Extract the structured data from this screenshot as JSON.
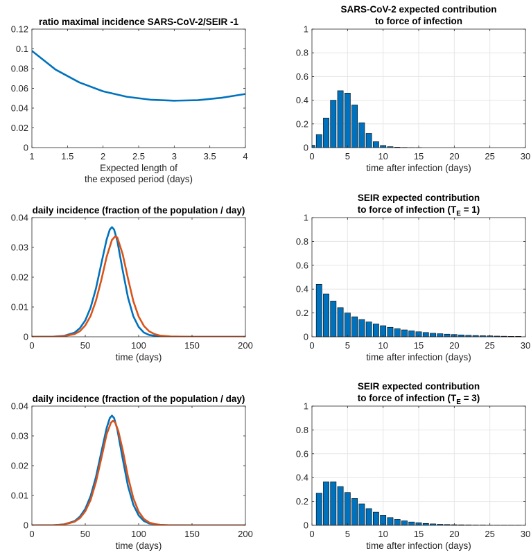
{
  "chart_data": [
    {
      "type": "line",
      "title": "ratio maximal incidence SARS-CoV-2/SEIR -1",
      "xlabel": [
        "Expected length of",
        "the exposed period (days)"
      ],
      "ylabel": "",
      "xlim": [
        1,
        4
      ],
      "ylim": [
        0,
        0.12
      ],
      "xticks": [
        1,
        1.5,
        2,
        2.5,
        3,
        3.5,
        4
      ],
      "yticks": [
        0,
        0.02,
        0.04,
        0.06,
        0.08,
        0.1,
        0.12
      ],
      "xtick_labels": [
        "1",
        "1.5",
        "2",
        "2.5",
        "3",
        "3.5",
        "4"
      ],
      "ytick_labels": [
        "0",
        "0.02",
        "0.04",
        "0.06",
        "0.08",
        "0.1",
        "0.12"
      ],
      "grid": false,
      "series": [
        {
          "color": "#0072BD",
          "x": [
            1,
            1.333,
            1.667,
            2,
            2.333,
            2.667,
            3,
            3.333,
            3.667,
            4
          ],
          "y": [
            0.098,
            0.079,
            0.066,
            0.057,
            0.0515,
            0.0485,
            0.0475,
            0.048,
            0.0505,
            0.0543
          ]
        }
      ]
    },
    {
      "type": "bar",
      "title": [
        "SARS-CoV-2 expected contribution",
        "to force of infection"
      ],
      "xlabel": "time after infection (days)",
      "ylabel": "",
      "xlim": [
        0,
        30
      ],
      "ylim": [
        0,
        1
      ],
      "xticks": [
        0,
        5,
        10,
        15,
        20,
        25,
        30
      ],
      "yticks": [
        0,
        0.2,
        0.4,
        0.6,
        0.8,
        1
      ],
      "xtick_labels": [
        "0",
        "5",
        "10",
        "15",
        "20",
        "25",
        "30"
      ],
      "ytick_labels": [
        "0",
        "0.2",
        "0.4",
        "0.6",
        "0.8",
        "1"
      ],
      "grid": true,
      "bar_color": "#0072BD",
      "x": [
        0,
        1,
        2,
        3,
        4,
        5,
        6,
        7,
        8,
        9,
        10,
        11,
        12,
        13,
        14,
        15
      ],
      "values": [
        0.02,
        0.11,
        0.25,
        0.4,
        0.48,
        0.46,
        0.36,
        0.21,
        0.12,
        0.05,
        0.018,
        0.008,
        0.004,
        0.002,
        0.001,
        0.001
      ]
    },
    {
      "type": "line",
      "title": "daily incidence (fraction of the population / day)",
      "xlabel": "time (days)",
      "ylabel": "",
      "xlim": [
        0,
        200
      ],
      "ylim": [
        0,
        0.04
      ],
      "xticks": [
        0,
        50,
        100,
        150,
        200
      ],
      "yticks": [
        0,
        0.01,
        0.02,
        0.03,
        0.04
      ],
      "xtick_labels": [
        "0",
        "50",
        "100",
        "150",
        "200"
      ],
      "ytick_labels": [
        "0",
        "0.01",
        "0.02",
        "0.03",
        "0.04"
      ],
      "grid": false,
      "series": [
        {
          "color": "#0072BD",
          "x": [
            0,
            20,
            30,
            40,
            45,
            50,
            55,
            60,
            65,
            70,
            73,
            75,
            77,
            80,
            85,
            90,
            95,
            100,
            105,
            110,
            120,
            130,
            150,
            200
          ],
          "y": [
            0,
            5e-05,
            0.0003,
            0.0014,
            0.0029,
            0.0055,
            0.0098,
            0.0162,
            0.0245,
            0.0326,
            0.036,
            0.0368,
            0.036,
            0.0322,
            0.0224,
            0.0132,
            0.0069,
            0.0033,
            0.0014,
            0.0006,
            0.0001,
            2e-05,
            0,
            0
          ]
        },
        {
          "color": "#D95319",
          "x": [
            0,
            20,
            30,
            40,
            45,
            50,
            55,
            60,
            65,
            70,
            75,
            78,
            80,
            85,
            90,
            95,
            100,
            105,
            110,
            115,
            120,
            130,
            150,
            200
          ],
          "y": [
            0,
            3e-05,
            0.0002,
            0.0009,
            0.0019,
            0.0038,
            0.007,
            0.0121,
            0.019,
            0.0268,
            0.0325,
            0.0337,
            0.0333,
            0.0278,
            0.0196,
            0.012,
            0.0068,
            0.0036,
            0.0018,
            0.0009,
            0.0004,
            0.0001,
            0,
            0
          ]
        }
      ]
    },
    {
      "type": "bar",
      "title": [
        "SEIR expected contribution",
        "to force of infection (T",
        "E",
        " = 1)"
      ],
      "xlabel": "time after infection (days)",
      "ylabel": "",
      "xlim": [
        0,
        30
      ],
      "ylim": [
        0,
        1
      ],
      "xticks": [
        0,
        5,
        10,
        15,
        20,
        25,
        30
      ],
      "yticks": [
        0,
        0.2,
        0.4,
        0.6,
        0.8,
        1
      ],
      "xtick_labels": [
        "0",
        "5",
        "10",
        "15",
        "20",
        "25",
        "30"
      ],
      "ytick_labels": [
        "0",
        "0.2",
        "0.4",
        "0.6",
        "0.8",
        "1"
      ],
      "grid": true,
      "bar_color": "#0072BD",
      "x": [
        0,
        1,
        2,
        3,
        4,
        5,
        6,
        7,
        8,
        9,
        10,
        11,
        12,
        13,
        14,
        15,
        16,
        17,
        18,
        19,
        20,
        21,
        22,
        23,
        24,
        25,
        26,
        27,
        28,
        29
      ],
      "values": [
        0.0,
        0.44,
        0.36,
        0.3,
        0.245,
        0.2,
        0.168,
        0.145,
        0.125,
        0.108,
        0.093,
        0.08,
        0.068,
        0.058,
        0.05,
        0.042,
        0.036,
        0.03,
        0.026,
        0.022,
        0.019,
        0.016,
        0.013,
        0.011,
        0.009,
        0.008,
        0.006,
        0.005,
        0.004,
        0.004
      ]
    },
    {
      "type": "line",
      "title": "daily incidence (fraction of the population / day)",
      "xlabel": "time (days)",
      "ylabel": "",
      "xlim": [
        0,
        200
      ],
      "ylim": [
        0,
        0.04
      ],
      "xticks": [
        0,
        50,
        100,
        150,
        200
      ],
      "yticks": [
        0,
        0.01,
        0.02,
        0.03,
        0.04
      ],
      "xtick_labels": [
        "0",
        "50",
        "100",
        "150",
        "200"
      ],
      "ytick_labels": [
        "0",
        "0.01",
        "0.02",
        "0.03",
        "0.04"
      ],
      "grid": false,
      "series": [
        {
          "color": "#0072BD",
          "x": [
            0,
            20,
            30,
            40,
            45,
            50,
            55,
            60,
            65,
            70,
            73,
            75,
            77,
            80,
            85,
            90,
            95,
            100,
            105,
            110,
            120,
            130,
            150,
            200
          ],
          "y": [
            0,
            5e-05,
            0.0003,
            0.0014,
            0.0029,
            0.0055,
            0.0098,
            0.0162,
            0.0245,
            0.0326,
            0.036,
            0.0368,
            0.036,
            0.0322,
            0.0224,
            0.0132,
            0.0069,
            0.0033,
            0.0014,
            0.0006,
            0.0001,
            2e-05,
            0,
            0
          ]
        },
        {
          "color": "#D95319",
          "x": [
            0,
            20,
            30,
            40,
            45,
            50,
            55,
            60,
            65,
            70,
            74,
            76,
            78,
            81,
            85,
            90,
            95,
            100,
            105,
            110,
            115,
            120,
            130,
            150,
            200
          ],
          "y": [
            0,
            4e-05,
            0.00025,
            0.0012,
            0.0024,
            0.0047,
            0.0085,
            0.0145,
            0.0224,
            0.0305,
            0.0344,
            0.0351,
            0.0345,
            0.0316,
            0.0254,
            0.0163,
            0.0091,
            0.0046,
            0.0021,
            0.0009,
            0.0004,
            0.0002,
            3e-05,
            0,
            0
          ]
        }
      ]
    },
    {
      "type": "bar",
      "title": [
        "SEIR expected contribution",
        "to force of infection (T",
        "E",
        " = 3)"
      ],
      "xlabel": "time after infection (days)",
      "ylabel": "",
      "xlim": [
        0,
        30
      ],
      "ylim": [
        0,
        1
      ],
      "xticks": [
        0,
        5,
        10,
        15,
        20,
        25,
        30
      ],
      "yticks": [
        0,
        0.2,
        0.4,
        0.6,
        0.8,
        1
      ],
      "xtick_labels": [
        "0",
        "5",
        "10",
        "15",
        "20",
        "25",
        "30"
      ],
      "ytick_labels": [
        "0",
        "0.2",
        "0.4",
        "0.6",
        "0.8",
        "1"
      ],
      "grid": true,
      "bar_color": "#0072BD",
      "x": [
        0,
        1,
        2,
        3,
        4,
        5,
        6,
        7,
        8,
        9,
        10,
        11,
        12,
        13,
        14,
        15,
        16,
        17,
        18,
        19,
        20,
        21,
        22,
        23,
        24,
        25,
        26,
        27,
        28,
        29
      ],
      "values": [
        0.0,
        0.27,
        0.365,
        0.365,
        0.325,
        0.275,
        0.225,
        0.18,
        0.14,
        0.11,
        0.085,
        0.065,
        0.05,
        0.037,
        0.028,
        0.021,
        0.016,
        0.012,
        0.009,
        0.007,
        0.005,
        0.004,
        0.003,
        0.002,
        0.002,
        0.001,
        0.001,
        0.001,
        0.001,
        0.0005
      ]
    }
  ]
}
